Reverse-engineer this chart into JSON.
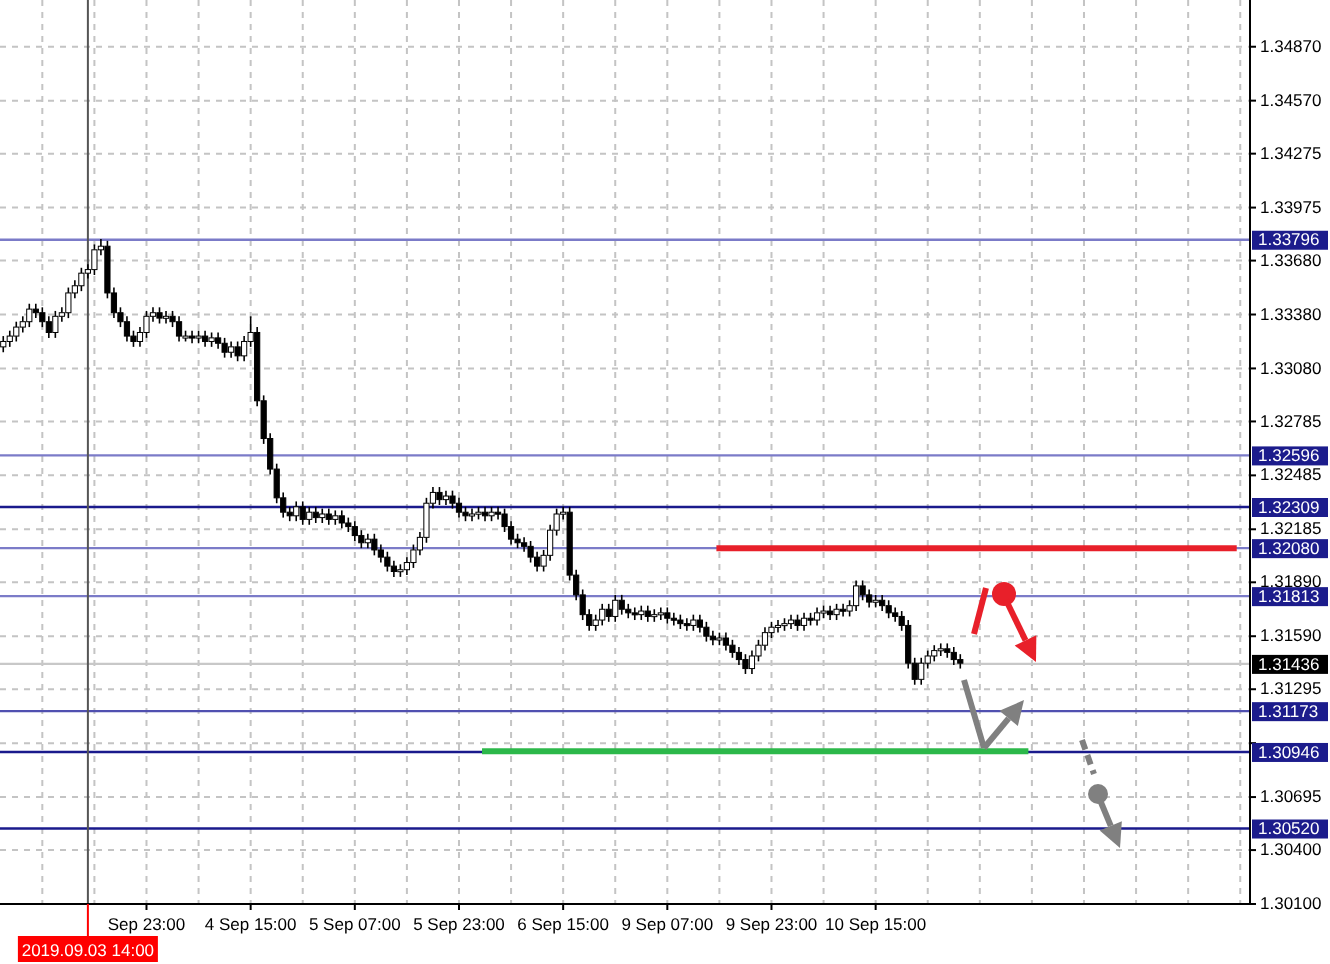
{
  "chart_data": {
    "type": "candlestick",
    "categories": [
      null,
      null,
      null,
      null,
      null,
      null,
      null,
      null,
      null,
      null,
      null,
      null,
      null,
      "2019.09.03 14:00",
      null,
      null,
      null,
      null,
      null,
      null,
      null,
      null,
      "Sep 23:00",
      null,
      null,
      null,
      null,
      null,
      null,
      null,
      null,
      null,
      null,
      null,
      null,
      null,
      null,
      null,
      "4 Sep 15:00",
      null,
      null,
      null,
      null,
      null,
      null,
      null,
      null,
      null,
      null,
      null,
      null,
      null,
      null,
      null,
      "5 Sep 07:00",
      null,
      null,
      null,
      null,
      null,
      null,
      null,
      null,
      null,
      null,
      null,
      null,
      null,
      null,
      null,
      "5 Sep 23:00",
      null,
      null,
      null,
      null,
      null,
      null,
      null,
      null,
      null,
      null,
      null,
      null,
      null,
      null,
      null,
      "6 Sep 15:00",
      null,
      null,
      null,
      null,
      null,
      null,
      null,
      null,
      null,
      null,
      null,
      null,
      null,
      null,
      null,
      "9 Sep 07:00",
      null,
      null,
      null,
      null,
      null,
      null,
      null,
      null,
      null,
      null,
      null,
      null,
      null,
      null,
      null,
      "9 Sep 23:00",
      null,
      null,
      null,
      null,
      null,
      null,
      null,
      null,
      null,
      null,
      null,
      null,
      null,
      null,
      null,
      "10 Sep 15:00",
      null,
      null,
      null,
      null,
      null,
      null,
      null,
      null,
      null,
      null,
      null,
      null,
      null,
      null,
      null,
      null,
      null,
      null,
      null,
      null,
      null,
      null,
      null,
      null,
      null,
      null,
      null,
      null,
      null,
      null,
      null,
      null,
      null,
      null,
      null,
      null,
      null,
      null,
      null,
      null,
      null,
      null,
      null,
      null,
      null,
      null,
      null,
      null,
      null,
      null,
      null,
      null,
      null,
      null,
      null,
      null,
      null
    ],
    "ohlc": [
      [
        1.332,
        1.3326,
        1.3317,
        1.3323
      ],
      [
        1.3323,
        1.3329,
        1.332,
        1.3326
      ],
      [
        1.3326,
        1.3334,
        1.3323,
        1.3331
      ],
      [
        1.3331,
        1.3337,
        1.3328,
        1.3334
      ],
      [
        1.3334,
        1.3344,
        1.3331,
        1.3341
      ],
      [
        1.3341,
        1.3344,
        1.3336,
        1.3339
      ],
      [
        1.3339,
        1.3342,
        1.3331,
        1.3334
      ],
      [
        1.3334,
        1.3337,
        1.3325,
        1.3328
      ],
      [
        1.3328,
        1.334,
        1.3325,
        1.3337
      ],
      [
        1.3337,
        1.3342,
        1.3334,
        1.3339
      ],
      [
        1.3339,
        1.3353,
        1.3336,
        1.335
      ],
      [
        1.335,
        1.3357,
        1.3347,
        1.3354
      ],
      [
        1.3354,
        1.3364,
        1.3351,
        1.3361
      ],
      [
        1.3361,
        1.3366,
        1.3358,
        1.3363
      ],
      [
        1.3363,
        1.3377,
        1.336,
        1.3374
      ],
      [
        1.3374,
        1.338,
        1.3371,
        1.3376
      ],
      [
        1.3376,
        1.3379,
        1.3347,
        1.335
      ],
      [
        1.335,
        1.3353,
        1.3336,
        1.3339
      ],
      [
        1.3339,
        1.3342,
        1.3331,
        1.3334
      ],
      [
        1.3334,
        1.3337,
        1.3323,
        1.3326
      ],
      [
        1.3326,
        1.3329,
        1.332,
        1.3323
      ],
      [
        1.3323,
        1.3331,
        1.332,
        1.3328
      ],
      [
        1.3328,
        1.334,
        1.3325,
        1.3337
      ],
      [
        1.3337,
        1.3342,
        1.3334,
        1.3339
      ],
      [
        1.3339,
        1.3342,
        1.3333,
        1.3336
      ],
      [
        1.3336,
        1.334,
        1.3333,
        1.3337
      ],
      [
        1.3337,
        1.334,
        1.3331,
        1.3334
      ],
      [
        1.3334,
        1.3337,
        1.3323,
        1.3326
      ],
      [
        1.3326,
        1.3329,
        1.3323,
        1.3326
      ],
      [
        1.3326,
        1.3329,
        1.3322,
        1.3325
      ],
      [
        1.3325,
        1.3329,
        1.3322,
        1.3326
      ],
      [
        1.3326,
        1.3329,
        1.332,
        1.3323
      ],
      [
        1.3323,
        1.3328,
        1.332,
        1.3325
      ],
      [
        1.3325,
        1.3328,
        1.3319,
        1.3322
      ],
      [
        1.3322,
        1.3325,
        1.3314,
        1.3317
      ],
      [
        1.3317,
        1.3323,
        1.3314,
        1.332
      ],
      [
        1.332,
        1.3323,
        1.3312,
        1.3315
      ],
      [
        1.3315,
        1.3326,
        1.3312,
        1.3323
      ],
      [
        1.3323,
        1.3337,
        1.332,
        1.3328
      ],
      [
        1.3328,
        1.3331,
        1.3287,
        1.329
      ],
      [
        1.329,
        1.3293,
        1.3266,
        1.3269
      ],
      [
        1.3269,
        1.3272,
        1.3249,
        1.3252
      ],
      [
        1.3252,
        1.3255,
        1.3233,
        1.3236
      ],
      [
        1.3236,
        1.3239,
        1.3225,
        1.3228
      ],
      [
        1.3228,
        1.3231,
        1.3223,
        1.3226
      ],
      [
        1.3226,
        1.3234,
        1.3223,
        1.3231
      ],
      [
        1.3231,
        1.3234,
        1.3221,
        1.3224
      ],
      [
        1.3224,
        1.3231,
        1.3221,
        1.3228
      ],
      [
        1.3228,
        1.3231,
        1.3222,
        1.3225
      ],
      [
        1.3225,
        1.323,
        1.3222,
        1.3227
      ],
      [
        1.3227,
        1.323,
        1.3221,
        1.3224
      ],
      [
        1.3224,
        1.3229,
        1.3221,
        1.3226
      ],
      [
        1.3226,
        1.3229,
        1.3219,
        1.3222
      ],
      [
        1.3222,
        1.3225,
        1.3217,
        1.322
      ],
      [
        1.322,
        1.3223,
        1.3212,
        1.3215
      ],
      [
        1.3215,
        1.3218,
        1.3208,
        1.3211
      ],
      [
        1.3211,
        1.3216,
        1.3208,
        1.3213
      ],
      [
        1.3213,
        1.3216,
        1.3204,
        1.3207
      ],
      [
        1.3207,
        1.321,
        1.32,
        1.3203
      ],
      [
        1.3203,
        1.3206,
        1.3195,
        1.3198
      ],
      [
        1.3198,
        1.3201,
        1.3192,
        1.3195
      ],
      [
        1.3195,
        1.3199,
        1.3192,
        1.3196
      ],
      [
        1.3196,
        1.3203,
        1.3193,
        1.32
      ],
      [
        1.32,
        1.321,
        1.3197,
        1.3207
      ],
      [
        1.3207,
        1.3217,
        1.3204,
        1.3214
      ],
      [
        1.3214,
        1.3236,
        1.3211,
        1.3233
      ],
      [
        1.3233,
        1.3242,
        1.323,
        1.3239
      ],
      [
        1.3239,
        1.3242,
        1.3232,
        1.3235
      ],
      [
        1.3235,
        1.324,
        1.3232,
        1.3237
      ],
      [
        1.3237,
        1.324,
        1.323,
        1.3233
      ],
      [
        1.3233,
        1.3236,
        1.3225,
        1.3228
      ],
      [
        1.3228,
        1.3231,
        1.3223,
        1.3226
      ],
      [
        1.3226,
        1.323,
        1.3223,
        1.3227
      ],
      [
        1.3227,
        1.3231,
        1.3224,
        1.3228
      ],
      [
        1.3228,
        1.3231,
        1.3223,
        1.3226
      ],
      [
        1.3226,
        1.3231,
        1.3223,
        1.3228
      ],
      [
        1.3228,
        1.3231,
        1.3224,
        1.3227
      ],
      [
        1.3227,
        1.323,
        1.3217,
        1.322
      ],
      [
        1.322,
        1.3223,
        1.321,
        1.3213
      ],
      [
        1.3213,
        1.3216,
        1.3208,
        1.3211
      ],
      [
        1.3211,
        1.3214,
        1.3206,
        1.3209
      ],
      [
        1.3209,
        1.3212,
        1.32,
        1.3203
      ],
      [
        1.3203,
        1.3206,
        1.3195,
        1.3198
      ],
      [
        1.3198,
        1.3207,
        1.3195,
        1.3204
      ],
      [
        1.3204,
        1.3221,
        1.3201,
        1.3218
      ],
      [
        1.3218,
        1.323,
        1.3215,
        1.3227
      ],
      [
        1.3227,
        1.3231,
        1.3224,
        1.3228
      ],
      [
        1.3228,
        1.3231,
        1.319,
        1.3193
      ],
      [
        1.3193,
        1.3196,
        1.3179,
        1.3182
      ],
      [
        1.3182,
        1.3185,
        1.3168,
        1.3171
      ],
      [
        1.3171,
        1.3174,
        1.3162,
        1.3165
      ],
      [
        1.3165,
        1.3171,
        1.3162,
        1.3168
      ],
      [
        1.3168,
        1.3177,
        1.3165,
        1.3174
      ],
      [
        1.3174,
        1.3177,
        1.3167,
        1.317
      ],
      [
        1.317,
        1.3182,
        1.3167,
        1.3179
      ],
      [
        1.3179,
        1.3182,
        1.3171,
        1.3174
      ],
      [
        1.3174,
        1.3177,
        1.3169,
        1.3172
      ],
      [
        1.3172,
        1.3175,
        1.3168,
        1.3171
      ],
      [
        1.3171,
        1.3176,
        1.3168,
        1.3173
      ],
      [
        1.3173,
        1.3176,
        1.3167,
        1.317
      ],
      [
        1.317,
        1.3174,
        1.3167,
        1.3171
      ],
      [
        1.3171,
        1.3175,
        1.3168,
        1.3172
      ],
      [
        1.3172,
        1.3175,
        1.3166,
        1.3169
      ],
      [
        1.3169,
        1.3172,
        1.3165,
        1.3168
      ],
      [
        1.3168,
        1.3171,
        1.3163,
        1.3166
      ],
      [
        1.3166,
        1.3169,
        1.3162,
        1.3165
      ],
      [
        1.3165,
        1.3171,
        1.3162,
        1.3168
      ],
      [
        1.3168,
        1.3171,
        1.3161,
        1.3164
      ],
      [
        1.3164,
        1.3167,
        1.3156,
        1.3159
      ],
      [
        1.3159,
        1.3162,
        1.3154,
        1.3157
      ],
      [
        1.3157,
        1.3161,
        1.3154,
        1.3158
      ],
      [
        1.3158,
        1.3161,
        1.3151,
        1.3154
      ],
      [
        1.3154,
        1.3157,
        1.3147,
        1.315
      ],
      [
        1.315,
        1.3153,
        1.3143,
        1.3146
      ],
      [
        1.3146,
        1.3149,
        1.3138,
        1.3141
      ],
      [
        1.3141,
        1.3151,
        1.3138,
        1.3148
      ],
      [
        1.3148,
        1.3157,
        1.3145,
        1.3154
      ],
      [
        1.3154,
        1.3164,
        1.3151,
        1.3161
      ],
      [
        1.3161,
        1.3167,
        1.3158,
        1.3164
      ],
      [
        1.3164,
        1.3168,
        1.3161,
        1.3165
      ],
      [
        1.3165,
        1.3169,
        1.3162,
        1.3166
      ],
      [
        1.3166,
        1.3171,
        1.3163,
        1.3168
      ],
      [
        1.3168,
        1.3171,
        1.3162,
        1.3165
      ],
      [
        1.3165,
        1.3172,
        1.3162,
        1.3169
      ],
      [
        1.3169,
        1.3172,
        1.3165,
        1.3168
      ],
      [
        1.3168,
        1.3175,
        1.3165,
        1.3172
      ],
      [
        1.3172,
        1.3176,
        1.3169,
        1.3173
      ],
      [
        1.3173,
        1.3176,
        1.3168,
        1.3171
      ],
      [
        1.3171,
        1.3177,
        1.3168,
        1.3174
      ],
      [
        1.3174,
        1.3177,
        1.317,
        1.3173
      ],
      [
        1.3173,
        1.3179,
        1.317,
        1.3176
      ],
      [
        1.3176,
        1.319,
        1.3173,
        1.3187
      ],
      [
        1.3187,
        1.319,
        1.3179,
        1.3182
      ],
      [
        1.3182,
        1.3185,
        1.3175,
        1.3178
      ],
      [
        1.3178,
        1.3182,
        1.3175,
        1.3179
      ],
      [
        1.3179,
        1.3182,
        1.3173,
        1.3176
      ],
      [
        1.3176,
        1.3179,
        1.3169,
        1.3172
      ],
      [
        1.3172,
        1.3175,
        1.3167,
        1.317
      ],
      [
        1.317,
        1.3173,
        1.3162,
        1.3165
      ],
      [
        1.3165,
        1.3168,
        1.3141,
        1.3144
      ],
      [
        1.3144,
        1.3147,
        1.3132,
        1.3135
      ],
      [
        1.3135,
        1.3147,
        1.3132,
        1.3144
      ],
      [
        1.3144,
        1.3151,
        1.3141,
        1.3148
      ],
      [
        1.3148,
        1.3154,
        1.3145,
        1.3151
      ],
      [
        1.3151,
        1.3155,
        1.3148,
        1.3152
      ],
      [
        1.3152,
        1.3155,
        1.3147,
        1.315
      ],
      [
        1.315,
        1.3153,
        1.3143,
        1.3146
      ],
      [
        1.3146,
        1.3149,
        1.3141,
        1.3144
      ],
      null,
      null,
      null,
      null,
      null,
      null,
      null,
      null,
      null,
      null,
      null,
      null,
      null,
      null,
      null,
      null,
      null,
      null,
      null,
      null,
      null,
      null,
      null,
      null,
      null,
      null,
      null,
      null,
      null,
      null,
      null,
      null,
      null,
      null,
      null,
      null,
      null,
      null,
      null,
      null,
      null,
      null,
      null,
      null
    ],
    "series": [
      {
        "type": "line",
        "color": "#e8202a",
        "values": [
          null,
          null,
          null,
          null,
          null,
          null,
          null,
          null,
          null,
          null,
          null,
          null,
          null,
          null,
          null,
          null,
          null,
          null,
          null,
          null,
          null,
          null,
          null,
          null,
          null,
          null,
          null,
          null,
          null,
          null,
          null,
          null,
          null,
          null,
          null,
          null,
          null,
          null,
          null,
          null,
          null,
          null,
          null,
          null,
          null,
          null,
          null,
          null,
          null,
          null,
          null,
          null,
          null,
          null,
          null,
          null,
          null,
          null,
          null,
          null,
          null,
          null,
          null,
          null,
          null,
          null,
          null,
          null,
          null,
          null,
          null,
          null,
          null,
          null,
          null,
          null,
          null,
          null,
          null,
          null,
          null,
          null,
          null,
          null,
          null,
          null,
          null,
          null,
          null,
          null,
          null,
          null,
          null,
          null,
          null,
          null,
          null,
          null,
          null,
          null,
          null,
          null,
          null,
          null,
          null,
          null,
          null,
          null,
          null,
          null,
          1.3208,
          1.3208,
          1.3208,
          1.3208,
          1.3208,
          1.3208,
          1.3208,
          1.3208,
          1.3208,
          1.3208,
          1.3208,
          1.3208,
          1.3208,
          1.3208,
          1.3208,
          1.3208,
          1.3208,
          1.3208,
          1.3208,
          1.3208,
          1.3208,
          1.3208,
          1.3208,
          1.3208,
          1.3208,
          1.3208,
          1.3208,
          1.3208,
          1.3208,
          1.3208,
          1.3208,
          1.3208,
          1.3208,
          1.3208,
          1.3208,
          1.3208,
          1.3208,
          1.3208,
          1.3208,
          1.3208,
          1.3208,
          1.3208,
          1.3208,
          1.3208,
          1.3208,
          1.3208,
          1.3208,
          1.3208,
          1.3208,
          1.3208,
          1.3208,
          1.3208,
          1.3208,
          1.3208,
          1.3208,
          1.3208,
          1.3208,
          1.3208,
          1.3208,
          1.3208,
          1.3208,
          1.3208,
          1.3208,
          1.3208,
          1.3208,
          1.3208,
          1.3208,
          1.3208,
          1.3208,
          1.3208,
          1.3208,
          1.3208,
          1.3208,
          1.3208,
          1.3208,
          1.3208,
          1.3208,
          1.3208,
          1.3208,
          1.3208,
          null,
          null
        ]
      },
      {
        "type": "line",
        "color": "#2cb84a",
        "values": [
          null,
          null,
          null,
          null,
          null,
          null,
          null,
          null,
          null,
          null,
          null,
          null,
          null,
          null,
          null,
          null,
          null,
          null,
          null,
          null,
          null,
          null,
          null,
          null,
          null,
          null,
          null,
          null,
          null,
          null,
          null,
          null,
          null,
          null,
          null,
          null,
          null,
          null,
          null,
          null,
          null,
          null,
          null,
          null,
          null,
          null,
          null,
          null,
          null,
          null,
          null,
          null,
          null,
          null,
          null,
          null,
          null,
          null,
          null,
          null,
          null,
          null,
          null,
          null,
          null,
          null,
          null,
          null,
          null,
          null,
          null,
          null,
          null,
          null,
          1.3095,
          1.3095,
          1.3095,
          1.3095,
          1.3095,
          1.3095,
          1.3095,
          1.3095,
          1.3095,
          1.3095,
          1.3095,
          1.3095,
          1.3095,
          1.3095,
          1.3095,
          1.3095,
          1.3095,
          1.3095,
          1.3095,
          1.3095,
          1.3095,
          1.3095,
          1.3095,
          1.3095,
          1.3095,
          1.3095,
          1.3095,
          1.3095,
          1.3095,
          1.3095,
          1.3095,
          1.3095,
          1.3095,
          1.3095,
          1.3095,
          1.3095,
          1.3095,
          1.3095,
          1.3095,
          1.3095,
          1.3095,
          1.3095,
          1.3095,
          1.3095,
          1.3095,
          1.3095,
          1.3095,
          1.3095,
          1.3095,
          1.3095,
          1.3095,
          1.3095,
          1.3095,
          1.3095,
          1.3095,
          1.3095,
          1.3095,
          1.3095,
          1.3095,
          1.3095,
          1.3095,
          1.3095,
          1.3095,
          1.3095,
          1.3095,
          1.3095,
          1.3095,
          1.3095,
          1.3095,
          1.3095,
          1.3095,
          1.3095,
          1.3095,
          1.3095,
          1.3095,
          1.3095,
          1.3095,
          1.3095,
          1.3095,
          1.3095,
          1.3095,
          1.3095,
          1.3095,
          1.3095,
          null,
          null,
          null,
          null,
          null,
          null,
          null,
          null,
          null,
          null,
          null,
          null,
          null,
          null,
          null,
          null,
          null,
          null,
          null,
          null,
          null,
          null,
          null,
          null,
          null,
          null,
          null,
          null,
          null,
          null,
          null,
          null,
          null,
          null
        ]
      }
    ],
    "ylim": [
      1.301,
      1.3513
    ],
    "yticks": [
      {
        "value": 1.301,
        "label": "1.30100"
      },
      {
        "value": 1.304,
        "label": "1.30400"
      },
      {
        "value": 1.30695,
        "label": "1.30695"
      },
      {
        "value": 1.30995,
        "label": null
      },
      {
        "value": 1.31295,
        "label": "1.31295"
      },
      {
        "value": 1.3159,
        "label": "1.31590"
      },
      {
        "value": 1.3189,
        "label": "1.31890"
      },
      {
        "value": 1.32185,
        "label": "1.32185"
      },
      {
        "value": 1.32485,
        "label": "1.32485"
      },
      {
        "value": 1.32785,
        "label": "1.32785"
      },
      {
        "value": 1.3308,
        "label": "1.33080"
      },
      {
        "value": 1.3338,
        "label": "1.33380"
      },
      {
        "value": 1.3368,
        "label": "1.33680"
      },
      {
        "value": 1.33975,
        "label": "1.33975"
      },
      {
        "value": 1.34275,
        "label": "1.34275"
      },
      {
        "value": 1.3457,
        "label": "1.34570"
      },
      {
        "value": 1.3487,
        "label": "1.34870"
      }
    ],
    "ref_lines": [
      {
        "axis": "x",
        "value": "2019.09.03 14:00",
        "color": "#555555"
      },
      {
        "axis": "y",
        "value": 1.33796,
        "label": "1.33796",
        "color": "#7b7bc8"
      },
      {
        "axis": "y",
        "value": 1.32596,
        "label": "1.32596",
        "color": "#7b7bc8"
      },
      {
        "axis": "y",
        "value": 1.32309,
        "label": "1.32309",
        "color": "#1a1a8c"
      },
      {
        "axis": "y",
        "value": 1.3208,
        "label": "1.32080",
        "color": "#7b7bc8"
      },
      {
        "axis": "y",
        "value": 1.31813,
        "label": "1.31813",
        "color": "#7b7bc8"
      },
      {
        "axis": "y",
        "value": 1.31436,
        "label": "1.31436",
        "color": "#c8c8c8"
      },
      {
        "axis": "y",
        "value": 1.31173,
        "label": "1.31173",
        "color": "#5050b0"
      },
      {
        "axis": "y",
        "value": 1.30946,
        "label": "1.30946",
        "color": "#1a1a8c"
      },
      {
        "axis": "y",
        "value": 1.3052,
        "label": "1.30520",
        "color": "#1a1a8c"
      }
    ],
    "grid": true
  }
}
